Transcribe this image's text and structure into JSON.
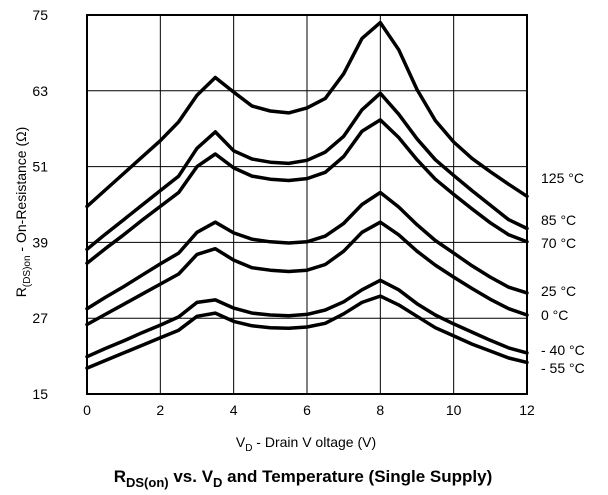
{
  "chart_data": {
    "type": "line",
    "x_label": {
      "main": "V",
      "sub": "D",
      "rest": " - Drain V oltage (V)"
    },
    "y_label": {
      "main": "R",
      "sub": "(DS)on",
      "rest": " - On-Resistance (Ω)"
    },
    "caption": {
      "p1": "R",
      "p1_sub": "DS(on)",
      "p2": " vs. V",
      "p2_sub": "D",
      "p3": " and Temperature (Single Supply)"
    },
    "xlim": [
      0,
      12
    ],
    "ylim": [
      15,
      75
    ],
    "x_ticks": [
      "0",
      "2",
      "4",
      "6",
      "8",
      "10",
      "12"
    ],
    "y_ticks": [
      "75",
      "63",
      "51",
      "39",
      "27",
      "15"
    ],
    "x": [
      0,
      0.5,
      1,
      1.5,
      2,
      2.5,
      3,
      3.5,
      4,
      4.5,
      5,
      5.5,
      6,
      6.5,
      7,
      7.5,
      8,
      8.5,
      9,
      9.5,
      10,
      10.5,
      11,
      11.5,
      12
    ],
    "series": [
      {
        "name": "125 °C",
        "values": [
          44.7,
          47.3,
          49.9,
          52.5,
          55.1,
          58.1,
          62.3,
          65.1,
          62.8,
          60.6,
          59.8,
          59.5,
          60.3,
          61.8,
          65.7,
          71.3,
          73.8,
          69.5,
          63.2,
          58.3,
          54.9,
          52.3,
          50.2,
          48.2,
          46.3
        ]
      },
      {
        "name": "85 °C",
        "values": [
          37.9,
          40.3,
          42.6,
          44.9,
          47.2,
          49.5,
          53.9,
          56.5,
          53.5,
          52.2,
          51.7,
          51.5,
          52.0,
          53.3,
          55.8,
          60.0,
          62.6,
          59.3,
          55.4,
          52.1,
          49.6,
          47.2,
          44.9,
          42.6,
          41.2
        ]
      },
      {
        "name": "70 °C",
        "values": [
          35.7,
          38.0,
          40.2,
          42.5,
          44.7,
          46.9,
          51.0,
          53.0,
          50.8,
          49.5,
          49.0,
          48.8,
          49.1,
          50.1,
          52.6,
          56.6,
          58.4,
          55.6,
          52.1,
          49.0,
          46.6,
          44.3,
          42.1,
          40.2,
          39.1
        ]
      },
      {
        "name": "25 °C",
        "values": [
          28.5,
          30.3,
          32.0,
          33.8,
          35.6,
          37.3,
          40.6,
          42.2,
          40.5,
          39.5,
          39.1,
          38.9,
          39.1,
          40.0,
          42.0,
          45.0,
          46.9,
          44.6,
          41.8,
          39.3,
          37.3,
          35.3,
          33.5,
          31.9,
          31.0
        ]
      },
      {
        "name": "0 °C",
        "values": [
          26.0,
          27.6,
          29.2,
          30.8,
          32.4,
          34.0,
          37.1,
          38.0,
          36.2,
          35.0,
          34.6,
          34.4,
          34.6,
          35.5,
          37.6,
          40.6,
          42.2,
          40.2,
          37.6,
          35.4,
          33.5,
          31.7,
          30.0,
          28.5,
          27.5
        ]
      },
      {
        "name": "- 40 °C",
        "values": [
          20.9,
          22.2,
          23.4,
          24.7,
          25.9,
          27.2,
          29.5,
          29.9,
          28.6,
          27.8,
          27.5,
          27.4,
          27.6,
          28.3,
          29.6,
          31.5,
          33.0,
          31.5,
          29.3,
          27.5,
          26.1,
          24.8,
          23.5,
          22.3,
          21.5
        ]
      },
      {
        "name": "- 55 °C",
        "values": [
          19.1,
          20.3,
          21.5,
          22.7,
          23.9,
          25.1,
          27.3,
          27.8,
          26.5,
          25.8,
          25.5,
          25.4,
          25.6,
          26.2,
          27.7,
          29.5,
          30.5,
          29.1,
          27.3,
          25.5,
          24.2,
          22.9,
          21.8,
          20.7,
          20.0
        ]
      }
    ],
    "grid": true,
    "legend": "right (labels at line ends)"
  }
}
